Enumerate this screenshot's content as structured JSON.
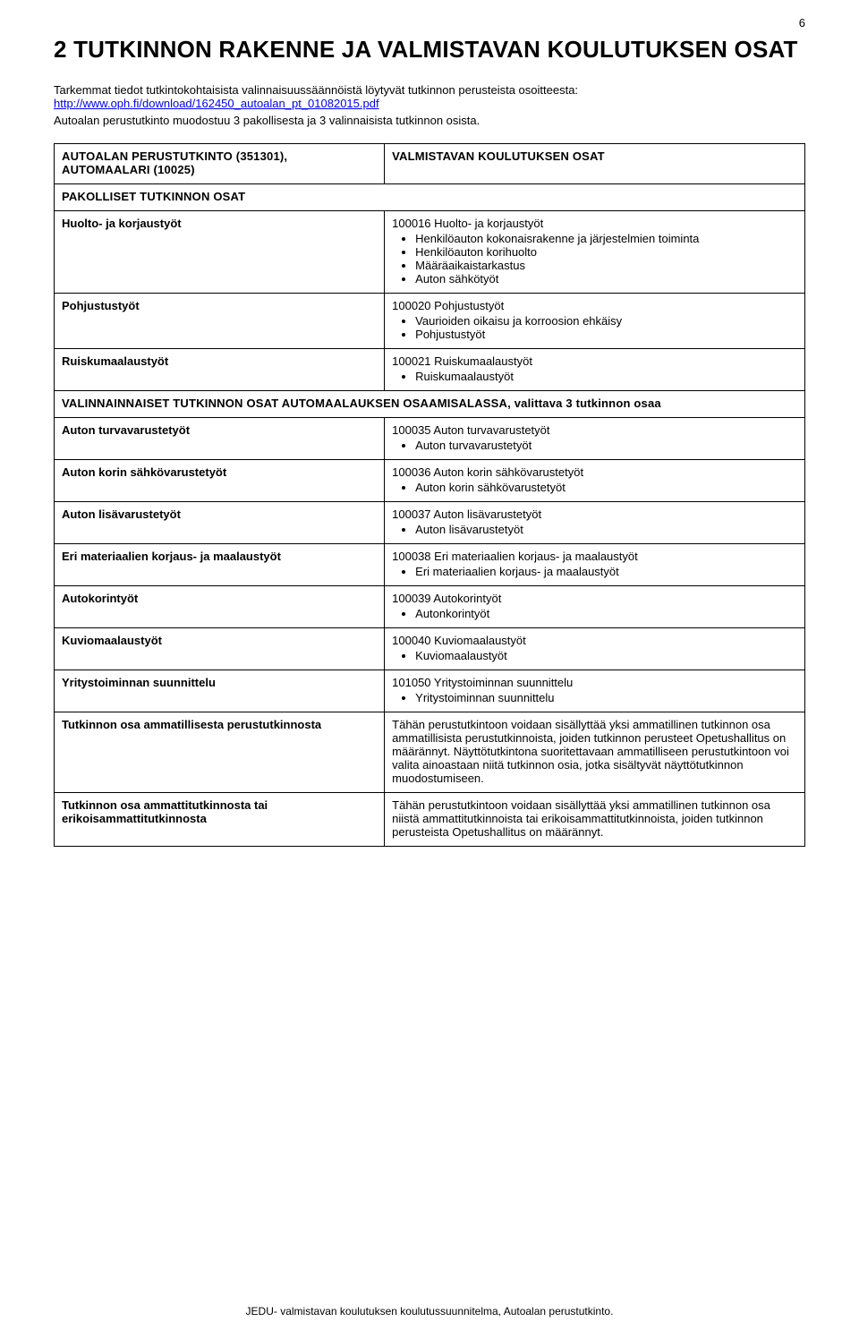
{
  "page_number": "6",
  "heading": "2  TUTKINNON RAKENNE JA VALMISTAVAN KOULUTUKSEN OSAT",
  "intro_text": "Tarkemmat tiedot tutkintokohtaisista valinnaisuussäännöistä löytyvät tutkinnon perusteista osoitteesta:",
  "intro_link": "http://www.oph.fi/download/162450_autoalan_pt_01082015.pdf",
  "sub_text": "Autoalan perustutkinto muodostuu 3 pakollisesta ja 3 valinnaisista tutkinnon osista.",
  "header_left": "AUTOALAN PERUSTUTKINTO (351301), AUTOMAALARI (10025)",
  "header_right": "VALMISTAVAN KOULUTUKSEN OSAT",
  "section_mandatory": "PAKOLLISET TUTKINNON OSAT",
  "rows_mandatory": [
    {
      "label": "Huolto- ja korjaustyöt",
      "title": "100016 Huolto- ja korjaustyöt",
      "bullets": [
        "Henkilöauton kokonaisrakenne ja järjestelmien toiminta",
        "Henkilöauton korihuolto",
        "Määräaikaistarkastus",
        "Auton sähkötyöt"
      ]
    },
    {
      "label": "Pohjustustyöt",
      "title": "100020 Pohjustustyöt",
      "bullets": [
        "Vaurioiden oikaisu ja korroosion ehkäisy",
        "Pohjustustyöt"
      ]
    },
    {
      "label": "Ruiskumaalaustyöt",
      "title": "100021 Ruiskumaalaustyöt",
      "bullets": [
        "Ruiskumaalaustyöt"
      ]
    }
  ],
  "section_optional": "VALINNAINNAISET TUTKINNON OSAT AUTOMAALAUKSEN OSAAMISALASSA, valittava 3 tutkinnon osaa",
  "rows_optional": [
    {
      "label": "Auton turvavarustetyöt",
      "title": "100035 Auton turvavarustetyöt",
      "bullets": [
        "Auton turvavarustetyöt"
      ]
    },
    {
      "label": "Auton korin sähkövarustetyöt",
      "title": "100036 Auton korin sähkövarustetyöt",
      "bullets": [
        "Auton korin sähkövarustetyöt"
      ]
    },
    {
      "label": "Auton lisävarustetyöt",
      "title": "100037 Auton lisävarustetyöt",
      "bullets": [
        "Auton lisävarustetyöt"
      ]
    },
    {
      "label": "Eri materiaalien korjaus- ja maalaustyöt",
      "title": "100038 Eri materiaalien korjaus- ja maalaustyöt",
      "bullets": [
        "Eri materiaalien korjaus- ja maalaustyöt"
      ]
    },
    {
      "label": "Autokorintyöt",
      "title": "100039 Autokorintyöt",
      "bullets": [
        "Autonkorintyöt"
      ]
    },
    {
      "label": "Kuviomaalaustyöt",
      "title": "100040 Kuviomaalaustyöt",
      "bullets": [
        "Kuviomaalaustyöt"
      ]
    },
    {
      "label": "Yritystoiminnan suunnittelu",
      "title": "101050 Yritystoiminnan suunnittelu",
      "bullets": [
        "Yritystoiminnan suunnittelu"
      ]
    },
    {
      "label": "Tutkinnon osa ammatillisesta perustutkinnosta",
      "paragraph": "Tähän perustutkintoon voidaan sisällyttää yksi ammatillinen tutkinnon osa ammatillisista perustutkinnoista, joiden tutkinnon perusteet Opetushallitus on määrännyt. Näyttötutkintona suoritettavaan ammatilliseen perustutkintoon voi valita ainoastaan niitä tutkinnon osia, jotka sisältyvät näyttötutkinnon muodostumiseen."
    },
    {
      "label": "Tutkinnon osa ammattitutkinnosta tai erikoisammattitutkinnosta",
      "paragraph": "Tähän perustutkintoon voidaan sisällyttää yksi ammatillinen tutkinnon osa niistä ammattitutkinnoista tai erikoisammattitutkinnoista, joiden tutkinnon perusteista Opetushallitus on määrännyt."
    }
  ],
  "footer": "JEDU- valmistavan koulutuksen koulutussuunnitelma, Autoalan perustutkinto."
}
